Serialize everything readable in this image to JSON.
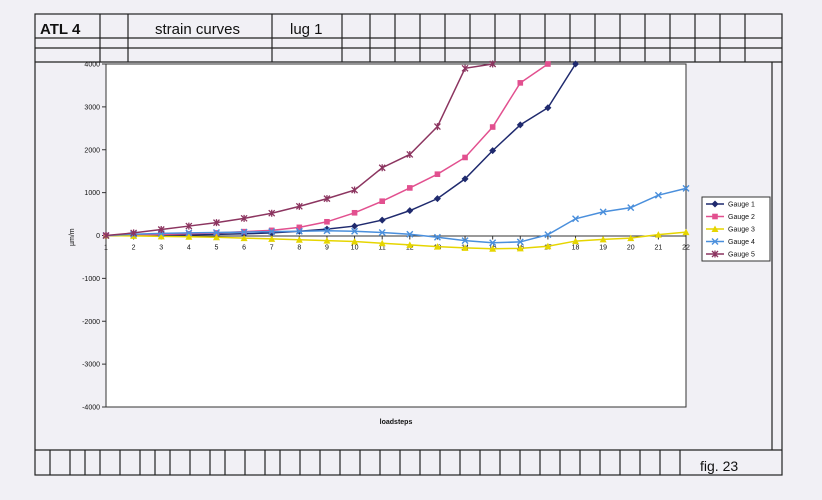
{
  "header": {
    "id_label": "ATL  4",
    "title": "strain  curves",
    "subtitle": "lug  1"
  },
  "footer": {
    "fig_label": "fig.  23"
  },
  "colors": {
    "page": "#f1f0f5",
    "plot_background": "#ffffff",
    "grid_lines": "#222222"
  },
  "chart_data": {
    "type": "line",
    "xlabel": "loadsteps",
    "ylabel": "µm/m",
    "x": [
      1,
      2,
      3,
      4,
      5,
      6,
      7,
      8,
      9,
      10,
      11,
      12,
      13,
      14,
      15,
      16,
      17,
      18,
      19,
      20,
      21,
      22
    ],
    "x_ticks": [
      "1",
      "2",
      "3",
      "4",
      "5",
      "6",
      "7",
      "8",
      "9",
      "10",
      "11",
      "12",
      "13",
      "14",
      "15",
      "16",
      "17",
      "18",
      "19",
      "20",
      "21",
      "22"
    ],
    "ylim": [
      -4000,
      4000
    ],
    "y_ticks": [
      "4000",
      "3000",
      "2000",
      "1000",
      "0",
      "-1000",
      "-2000",
      "-3000",
      "-4000"
    ],
    "y_tick_values": [
      4000,
      3000,
      2000,
      1000,
      0,
      -1000,
      -2000,
      -3000,
      -4000
    ],
    "grid": false,
    "legend_position": "right",
    "series": [
      {
        "name": "Gauge  1",
        "color": "#1f2a6e",
        "marker": "diamond",
        "x": [
          1,
          2,
          3,
          4,
          5,
          6,
          7,
          8,
          9,
          10,
          11,
          12,
          13,
          14,
          15,
          16,
          17,
          18
        ],
        "values": [
          0,
          5,
          10,
          15,
          25,
          40,
          60,
          100,
          150,
          220,
          360,
          580,
          860,
          1320,
          1980,
          2580,
          2980,
          4000
        ]
      },
      {
        "name": "Gauge  2",
        "color": "#e2508f",
        "marker": "square",
        "x": [
          1,
          2,
          3,
          4,
          5,
          6,
          7,
          8,
          9,
          10,
          11,
          12,
          13,
          14,
          15,
          16,
          17
        ],
        "values": [
          0,
          10,
          25,
          40,
          60,
          90,
          120,
          190,
          320,
          530,
          800,
          1110,
          1430,
          1820,
          2530,
          3560,
          4000
        ]
      },
      {
        "name": "Gauge  3",
        "color": "#e6d500",
        "marker": "triangle",
        "x": [
          1,
          2,
          3,
          4,
          5,
          6,
          7,
          8,
          9,
          10,
          11,
          12,
          13,
          14,
          15,
          16,
          17,
          18,
          19,
          20,
          21,
          22
        ],
        "values": [
          0,
          -10,
          -20,
          -30,
          -40,
          -60,
          -80,
          -100,
          -120,
          -140,
          -180,
          -220,
          -260,
          -290,
          -310,
          -300,
          -250,
          -130,
          -90,
          -60,
          20,
          80
        ]
      },
      {
        "name": "Gauge  4",
        "color": "#4a8fdc",
        "marker": "x",
        "x": [
          1,
          2,
          3,
          4,
          5,
          6,
          7,
          8,
          9,
          10,
          11,
          12,
          13,
          14,
          15,
          16,
          17,
          18,
          19,
          20,
          21,
          22
        ],
        "values": [
          0,
          30,
          50,
          60,
          70,
          80,
          90,
          100,
          110,
          100,
          70,
          30,
          -40,
          -120,
          -170,
          -150,
          20,
          390,
          550,
          650,
          940,
          1100
        ]
      },
      {
        "name": "Gauge  5",
        "color": "#8c3560",
        "marker": "star",
        "x": [
          1,
          2,
          3,
          4,
          5,
          6,
          7,
          8,
          9,
          10,
          11,
          12,
          13,
          14,
          15
        ],
        "values": [
          0,
          60,
          140,
          220,
          300,
          400,
          520,
          680,
          860,
          1060,
          1580,
          1890,
          2540,
          3900,
          4000
        ]
      }
    ]
  }
}
